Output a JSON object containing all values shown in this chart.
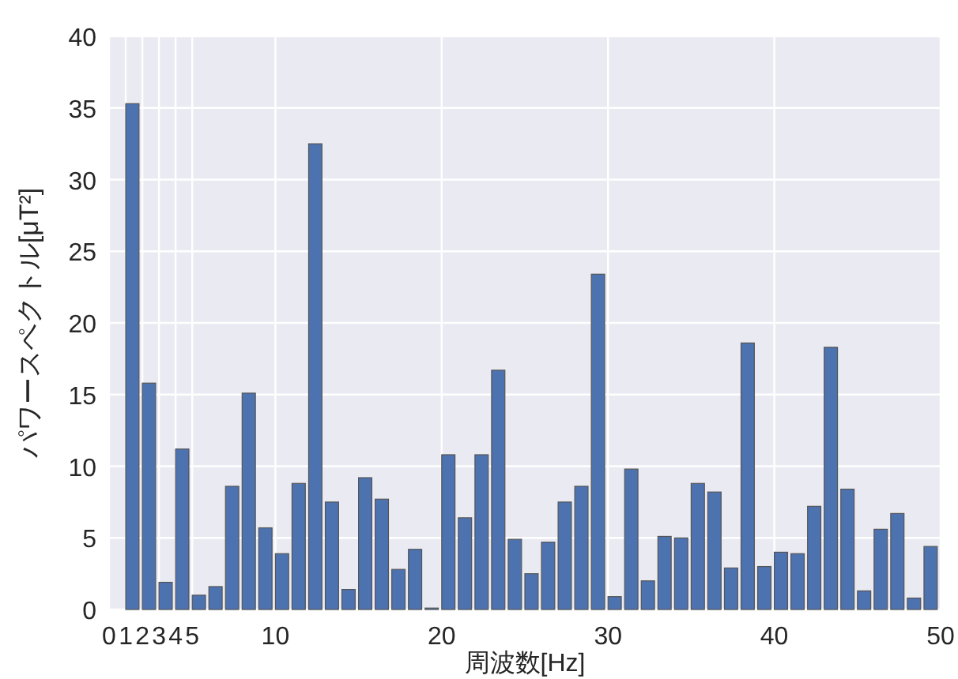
{
  "chart_data": {
    "type": "bar",
    "xlabel": "周波数[Hz]",
    "ylabel": "パワースペクトル[μT²]",
    "x": [
      1.4,
      2.4,
      3.4,
      4.4,
      5.4,
      6.4,
      7.4,
      8.4,
      9.4,
      10.4,
      11.4,
      12.4,
      13.4,
      14.4,
      15.4,
      16.4,
      17.4,
      18.4,
      19.4,
      20.4,
      21.4,
      22.4,
      23.4,
      24.4,
      25.4,
      26.4,
      27.4,
      28.4,
      29.4,
      30.4,
      31.4,
      32.4,
      33.4,
      34.4,
      35.4,
      36.4,
      37.4,
      38.4,
      39.4,
      40.4,
      41.4,
      42.4,
      43.4,
      44.4,
      45.4,
      46.4,
      47.4,
      48.4,
      49.4
    ],
    "values": [
      35.3,
      15.8,
      1.9,
      11.2,
      1.0,
      1.6,
      8.6,
      15.1,
      5.7,
      3.9,
      8.8,
      32.5,
      7.5,
      1.4,
      9.2,
      7.7,
      2.8,
      4.2,
      0.1,
      10.8,
      6.4,
      10.8,
      16.7,
      4.9,
      2.5,
      4.7,
      7.5,
      8.6,
      23.4,
      0.9,
      9.8,
      2.0,
      5.1,
      5.0,
      8.8,
      8.2,
      2.9,
      18.6,
      3.0,
      4.0,
      3.9,
      7.2,
      18.3,
      8.4,
      1.3,
      5.6,
      6.7,
      0.8,
      4.4
    ],
    "color": "#4c72b0",
    "xlim": [
      0,
      50
    ],
    "xticks": [
      0,
      1,
      2,
      3,
      4,
      5,
      10,
      20,
      30,
      40,
      50
    ],
    "ylim": [
      0,
      40
    ],
    "yticks": [
      0,
      5,
      10,
      15,
      20,
      25,
      30,
      35,
      40
    ],
    "grid": true
  }
}
